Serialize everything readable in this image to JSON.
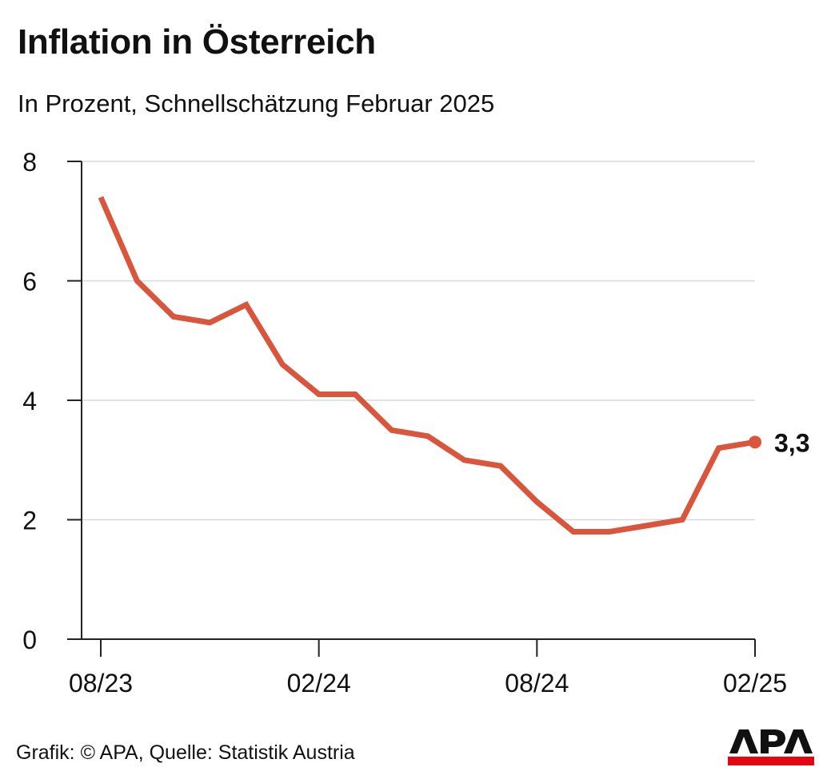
{
  "header": {
    "title": "Inflation in Österreich",
    "subtitle": "In Prozent, Schnellschätzung Februar 2025"
  },
  "footer": {
    "source": "Grafik: © APA, Quelle: Statistik Austria",
    "logo_text": "APA"
  },
  "colors": {
    "line": "#d9553c",
    "grid": "#d9d9d9",
    "axis": "#222222",
    "logo_red": "#e30613"
  },
  "chart_data": {
    "type": "line",
    "title": "Inflation in Österreich",
    "subtitle": "In Prozent, Schnellschätzung Februar 2025",
    "x": [
      "08/23",
      "09/23",
      "10/23",
      "11/23",
      "12/23",
      "01/24",
      "02/24",
      "03/24",
      "04/24",
      "05/24",
      "06/24",
      "07/24",
      "08/24",
      "09/24",
      "10/24",
      "11/24",
      "12/24",
      "01/25",
      "02/25"
    ],
    "series": [
      {
        "values": [
          7.4,
          6.0,
          5.4,
          5.3,
          5.6,
          4.6,
          4.1,
          4.1,
          3.5,
          3.4,
          3.0,
          2.9,
          2.3,
          1.8,
          1.8,
          1.9,
          2.0,
          3.2,
          3.3
        ]
      }
    ],
    "x_tick_labels": [
      "08/23",
      "02/24",
      "08/24",
      "02/25"
    ],
    "y_ticks": [
      0,
      2,
      4,
      6,
      8
    ],
    "ylim": [
      0,
      8
    ],
    "end_label": "3,3",
    "grid": true,
    "legend": "none"
  }
}
